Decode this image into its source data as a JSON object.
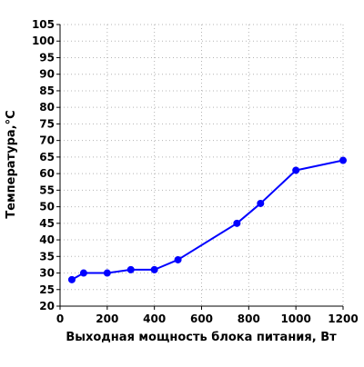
{
  "chart_data": {
    "type": "line",
    "title": "",
    "xlabel": "Выходная мощность блока питания, Вт",
    "ylabel": "Температура,°C",
    "xlim": [
      0,
      1200
    ],
    "ylim": [
      20,
      105
    ],
    "xticks": [
      0,
      200,
      400,
      600,
      800,
      1000,
      1200
    ],
    "yticks": [
      20,
      25,
      30,
      35,
      40,
      45,
      50,
      55,
      60,
      65,
      70,
      75,
      80,
      85,
      90,
      95,
      100,
      105
    ],
    "grid": true,
    "legend": "none",
    "series": [
      {
        "color": "#0000ff",
        "x": [
          50,
          100,
          200,
          300,
          400,
          500,
          750,
          850,
          1000,
          1200
        ],
        "y": [
          28,
          30,
          30,
          31,
          31,
          34,
          45,
          51,
          61,
          64
        ]
      }
    ]
  }
}
